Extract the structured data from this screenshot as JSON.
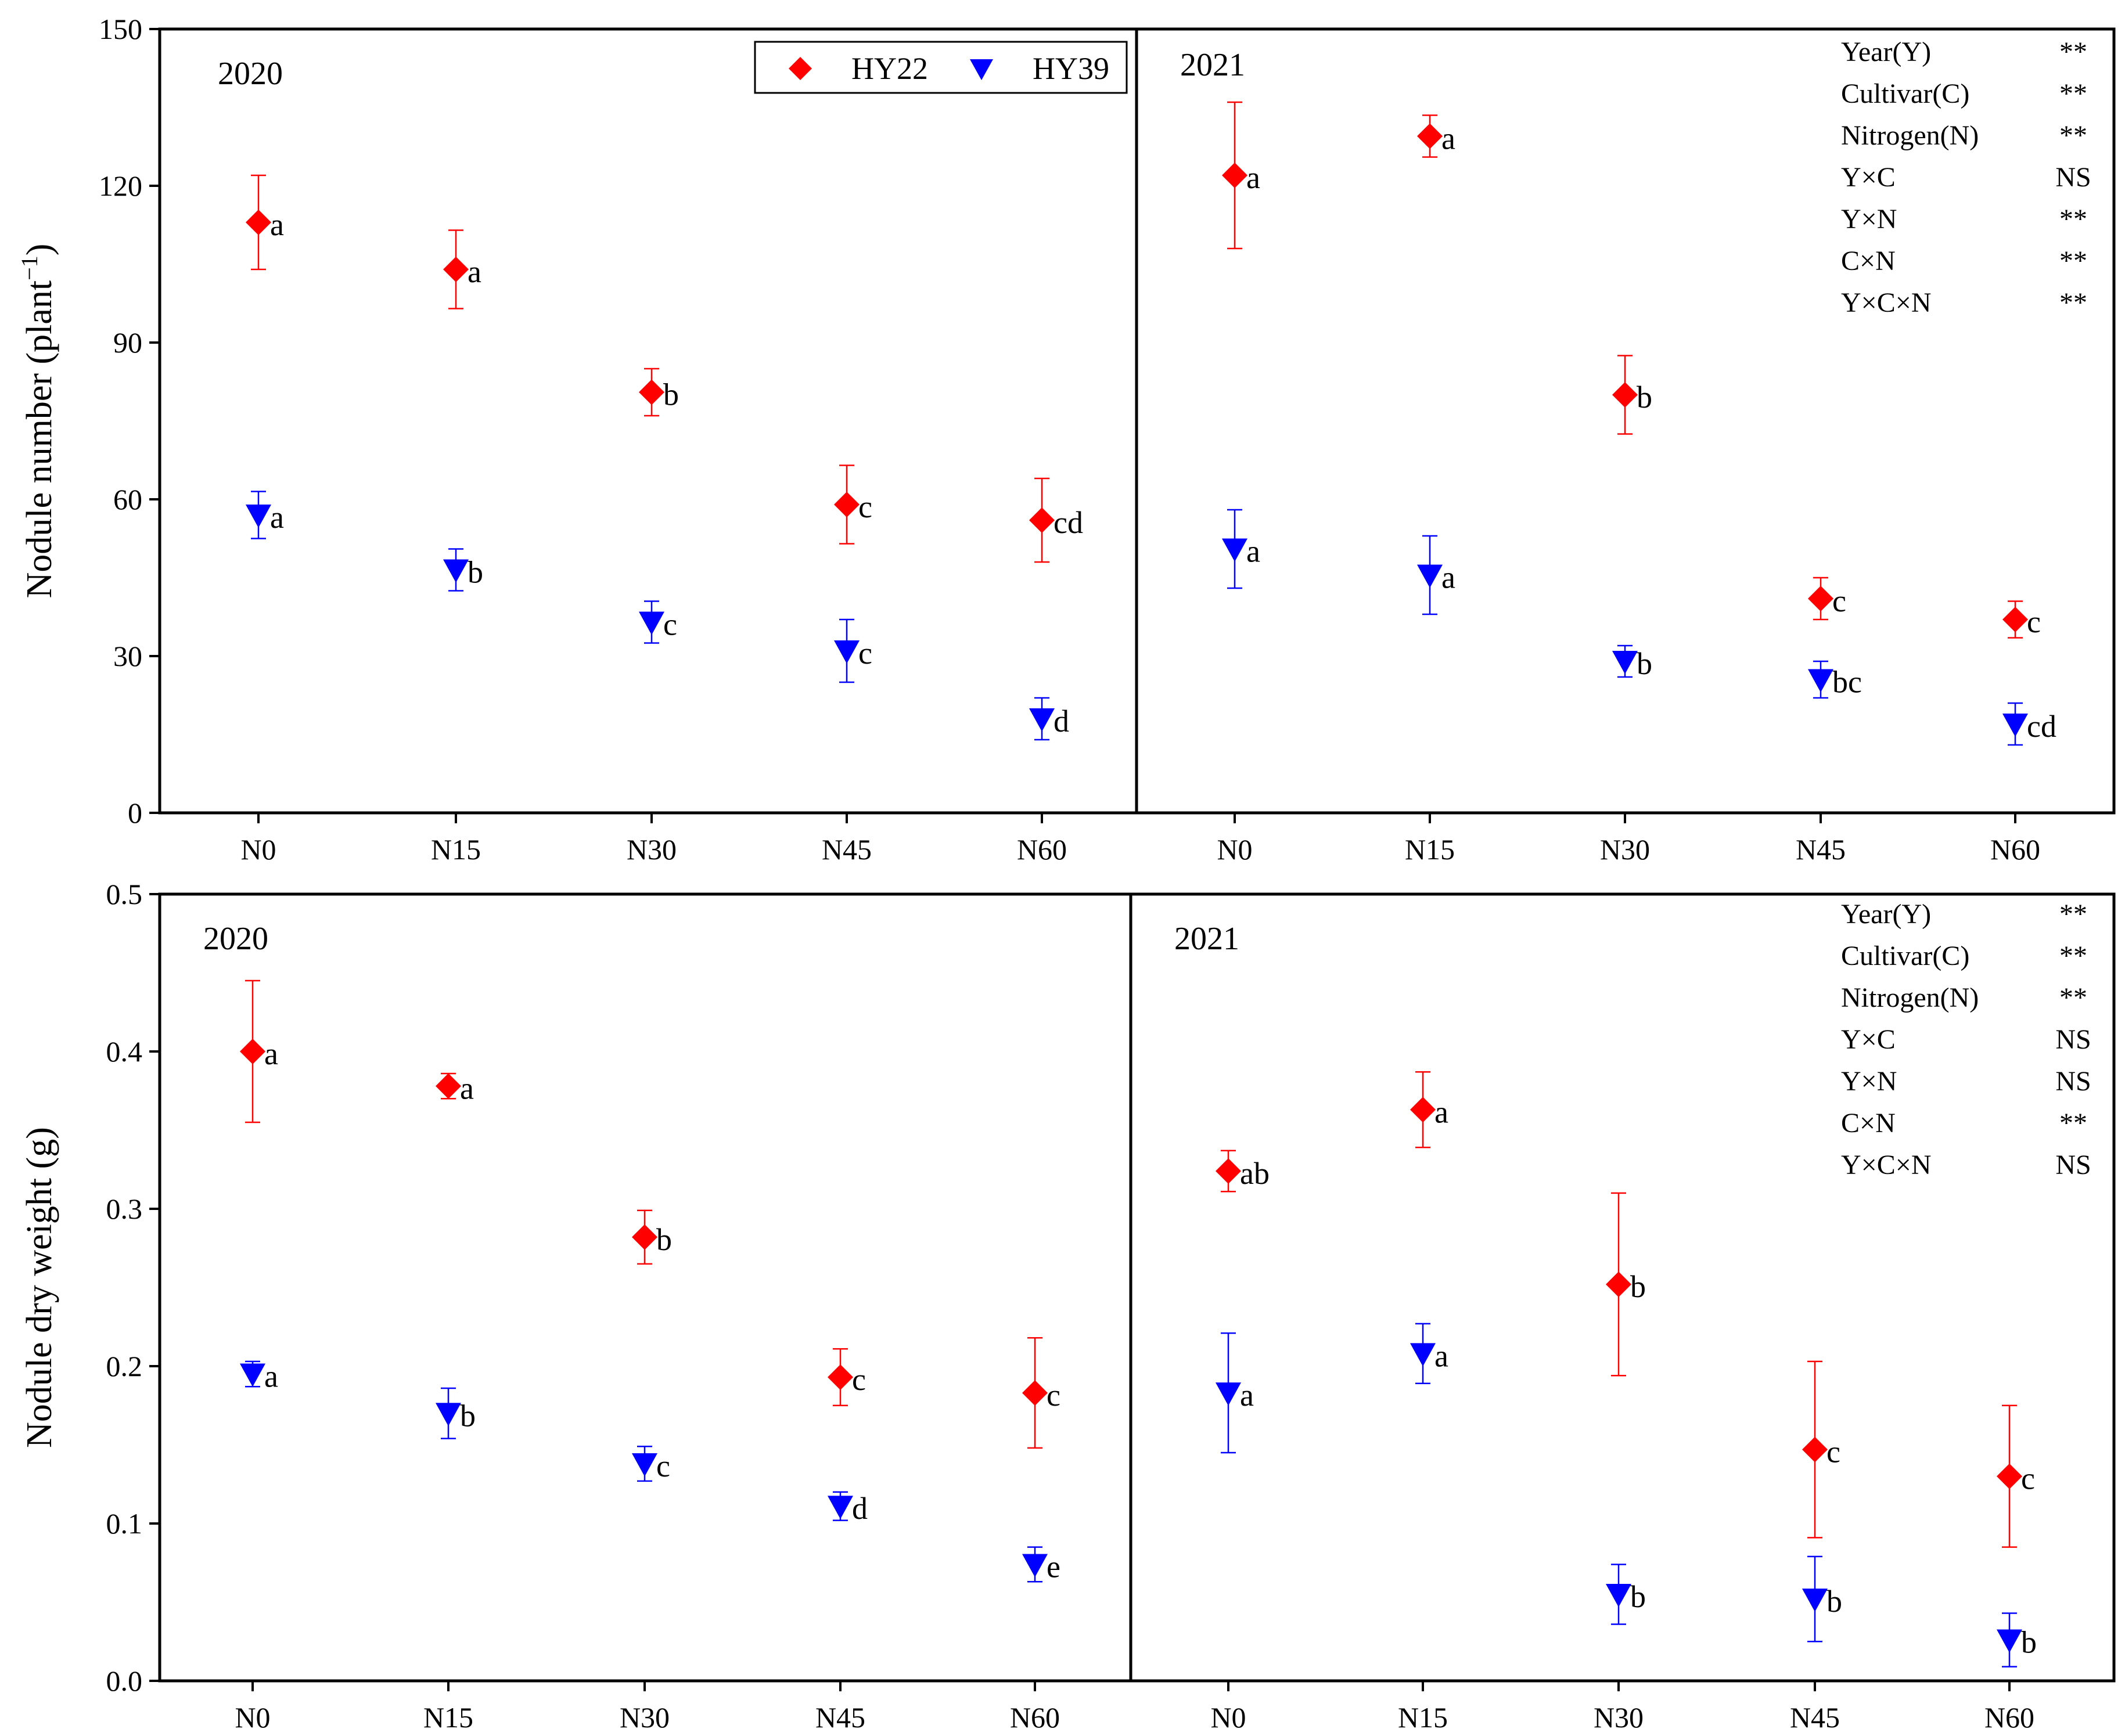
{
  "colors": {
    "HY22": "#ff0000",
    "HY39": "#0000ff",
    "axis": "#000000"
  },
  "legend": [
    {
      "name": "HY22",
      "marker": "diamond"
    },
    {
      "name": "HY39",
      "marker": "triangle-down"
    }
  ],
  "chart_data": [
    {
      "id": "nodule-number",
      "type": "scatter",
      "ylabel": "Nodule number (plant",
      "ylabel_sup": "−1",
      "ylabel_close": ")",
      "ylim": [
        0,
        150
      ],
      "yticks": [
        "0",
        "30",
        "60",
        "90",
        "120",
        "150"
      ],
      "categories": [
        "N0",
        "N15",
        "N30",
        "N45",
        "N60"
      ],
      "panels": [
        {
          "year": "2020",
          "series": [
            {
              "name": "HY22",
              "values": [
                113,
                104,
                80.5,
                59,
                56
              ],
              "errors": [
                9,
                7.5,
                4.5,
                7.5,
                8
              ],
              "letters": [
                "a",
                "a",
                "b",
                "c",
                "cd"
              ]
            },
            {
              "name": "HY39",
              "values": [
                57,
                46.5,
                36.5,
                31,
                18
              ],
              "errors": [
                4.5,
                4,
                4,
                6,
                4
              ],
              "letters": [
                "a",
                "b",
                "c",
                "c",
                "d"
              ]
            }
          ]
        },
        {
          "year": "2021",
          "series": [
            {
              "name": "HY22",
              "values": [
                122,
                129.5,
                80,
                41,
                37
              ],
              "errors": [
                14,
                4,
                7.5,
                4,
                3.5
              ],
              "letters": [
                "a",
                "a",
                "b",
                "c",
                "c"
              ]
            },
            {
              "name": "HY39",
              "values": [
                50.5,
                45.5,
                29,
                25.5,
                17
              ],
              "errors": [
                7.5,
                7.5,
                3,
                3.5,
                4
              ],
              "letters": [
                "a",
                "a",
                "b",
                "bc",
                "cd"
              ]
            }
          ],
          "anova": [
            {
              "factor": "Year(Y)",
              "sig": "**"
            },
            {
              "factor": "Cultivar(C)",
              "sig": "**"
            },
            {
              "factor": "Nitrogen(N)",
              "sig": "**"
            },
            {
              "factor": "Y×C",
              "sig": "NS"
            },
            {
              "factor": "Y×N",
              "sig": "**"
            },
            {
              "factor": "C×N",
              "sig": "**"
            },
            {
              "factor": "Y×C×N",
              "sig": "**"
            }
          ]
        }
      ]
    },
    {
      "id": "nodule-dry-weight",
      "type": "scatter",
      "ylabel": "Nodule dry weight (g)",
      "ylim": [
        0,
        0.5
      ],
      "yticks": [
        "0.0",
        "0.1",
        "0.2",
        "0.3",
        "0.4",
        "0.5"
      ],
      "categories": [
        "N0",
        "N15",
        "N30",
        "N45",
        "N60"
      ],
      "panels": [
        {
          "year": "2020",
          "series": [
            {
              "name": "HY22",
              "values": [
                0.4,
                0.378,
                0.282,
                0.193,
                0.183
              ],
              "errors": [
                0.045,
                0.008,
                0.017,
                0.018,
                0.035
              ],
              "letters": [
                "a",
                "a",
                "b",
                "c",
                "c"
              ]
            },
            {
              "name": "HY39",
              "values": [
                0.195,
                0.17,
                0.138,
                0.111,
                0.074
              ],
              "errors": [
                0.008,
                0.016,
                0.011,
                0.009,
                0.011
              ],
              "letters": [
                "a",
                "b",
                "c",
                "d",
                "e"
              ]
            }
          ]
        },
        {
          "year": "2021",
          "series": [
            {
              "name": "HY22",
              "values": [
                0.324,
                0.363,
                0.252,
                0.147,
                0.13
              ],
              "errors": [
                0.013,
                0.024,
                0.058,
                0.056,
                0.045
              ],
              "letters": [
                "ab",
                "a",
                "b",
                "c",
                "c"
              ]
            },
            {
              "name": "HY39",
              "values": [
                0.183,
                0.208,
                0.055,
                0.052,
                0.026
              ],
              "errors": [
                0.038,
                0.019,
                0.019,
                0.027,
                0.017
              ],
              "letters": [
                "a",
                "a",
                "b",
                "b",
                "b"
              ]
            }
          ],
          "anova": [
            {
              "factor": "Year(Y)",
              "sig": "**"
            },
            {
              "factor": "Cultivar(C)",
              "sig": "**"
            },
            {
              "factor": "Nitrogen(N)",
              "sig": "**"
            },
            {
              "factor": "Y×C",
              "sig": "NS"
            },
            {
              "factor": "Y×N",
              "sig": "NS"
            },
            {
              "factor": "C×N",
              "sig": "**"
            },
            {
              "factor": "Y×C×N",
              "sig": "NS"
            }
          ]
        }
      ]
    }
  ]
}
